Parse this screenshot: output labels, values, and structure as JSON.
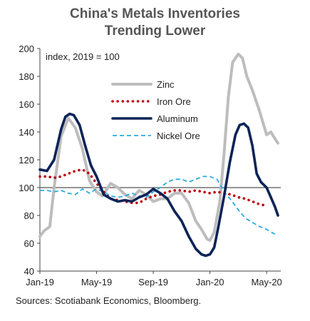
{
  "chart_data": {
    "type": "line",
    "title": "China's Metals Inventories",
    "subtitle": "Trending Lower",
    "annotation": "index, 2019 = 100",
    "source": "Sources: Scotiabank Economics, Bloomberg.",
    "x_ticks": [
      "Jan-19",
      "May-19",
      "Sep-19",
      "Jan-20",
      "May-20"
    ],
    "y_ticks": [
      40,
      60,
      80,
      100,
      120,
      140,
      160,
      180,
      200
    ],
    "ylim": [
      40,
      200
    ],
    "xlim": [
      0,
      17
    ],
    "reference_line": 100,
    "legend": {
      "placement": "inside-top-center"
    },
    "series": [
      {
        "name": "Zinc",
        "color": "#bdbdbd",
        "style": "solid",
        "x": [
          0,
          0.3,
          0.7,
          1.0,
          1.5,
          2.0,
          2.5,
          3.0,
          3.5,
          4.0,
          4.4,
          5.0,
          5.5,
          6.0,
          6.5,
          7.0,
          7.5,
          8.0,
          8.5,
          9.0,
          9.5,
          10.0,
          10.5,
          11.0,
          11.4,
          11.8,
          12.0,
          12.3,
          12.7,
          13.0,
          13.3,
          13.6,
          14.0,
          14.3,
          14.6,
          15.0,
          15.5,
          16.0,
          16.3,
          16.6,
          16.8
        ],
        "values": [
          65,
          69,
          72,
          100,
          137,
          150,
          143,
          128,
          105,
          97,
          94,
          103,
          100,
          95,
          92,
          98,
          95,
          90,
          92,
          92,
          96,
          96,
          89,
          76,
          70,
          63,
          62,
          68,
          90,
          125,
          165,
          190,
          196,
          193,
          180,
          170,
          155,
          138,
          140,
          135,
          132
        ]
      },
      {
        "name": "Iron Ore",
        "color": "#c0000f",
        "style": "dotted",
        "x": [
          0,
          0.5,
          1.0,
          1.5,
          2.0,
          2.5,
          3.0,
          3.5,
          4.0,
          4.5,
          5.0,
          5.5,
          6.0,
          6.5,
          7.0,
          7.5,
          8.0,
          8.5,
          9.0,
          9.5,
          10.0,
          10.5,
          11.0,
          11.5,
          12.0,
          12.5,
          13.0,
          13.5,
          14.0,
          14.5,
          15.0,
          15.5,
          16.0
        ],
        "values": [
          108,
          108,
          107,
          108,
          110,
          112,
          113,
          110,
          103,
          97,
          92,
          91,
          90,
          89,
          89,
          92,
          94,
          95,
          97,
          98,
          98,
          97,
          98,
          97,
          96,
          97,
          96,
          95,
          93,
          92,
          90,
          88,
          87
        ]
      },
      {
        "name": "Aluminum",
        "color": "#0b2357",
        "style": "solid",
        "x": [
          0,
          0.5,
          1.0,
          1.5,
          1.8,
          2.1,
          2.4,
          2.8,
          3.2,
          3.6,
          4.0,
          4.5,
          5.0,
          5.5,
          6.0,
          6.5,
          7.0,
          7.5,
          8.0,
          8.5,
          9.0,
          9.5,
          10.0,
          10.5,
          11.0,
          11.4,
          11.7,
          12.0,
          12.3,
          12.6,
          13.0,
          13.4,
          13.8,
          14.1,
          14.4,
          14.7,
          15.0,
          15.3,
          15.6,
          16.0,
          16.3,
          16.6,
          16.8
        ],
        "values": [
          113,
          112,
          120,
          142,
          151,
          153,
          152,
          145,
          130,
          116,
          108,
          95,
          92,
          90,
          91,
          90,
          93,
          95,
          99,
          96,
          92,
          83,
          76,
          65,
          56,
          52,
          51,
          52,
          57,
          72,
          94,
          118,
          138,
          145,
          146,
          143,
          130,
          110,
          104,
          100,
          93,
          86,
          80
        ]
      },
      {
        "name": "Nickel Ore",
        "color": "#29abe2",
        "style": "dashed",
        "x": [
          0,
          0.5,
          1.0,
          1.5,
          2.0,
          2.5,
          3.0,
          3.5,
          4.0,
          4.5,
          5.0,
          5.5,
          6.0,
          6.5,
          7.0,
          7.5,
          8.0,
          8.5,
          9.0,
          9.5,
          10.0,
          10.5,
          11.0,
          11.5,
          12.0,
          12.5,
          13.0,
          13.5,
          14.0,
          14.5,
          15.0,
          15.5,
          16.0,
          16.5,
          16.8
        ],
        "values": [
          98,
          98,
          97,
          98,
          96,
          95,
          99,
          96,
          99,
          97,
          94,
          93,
          94,
          96,
          94,
          93,
          97,
          100,
          104,
          106,
          106,
          104,
          106,
          108,
          108,
          106,
          97,
          91,
          84,
          78,
          75,
          72,
          70,
          67,
          66
        ]
      }
    ]
  }
}
